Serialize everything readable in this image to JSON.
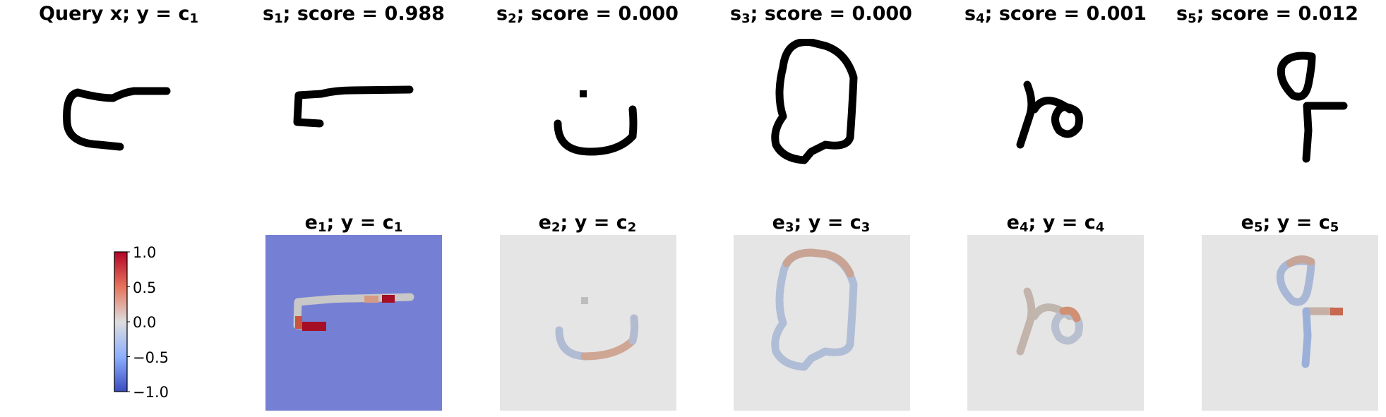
{
  "top_row": [
    {
      "id": "query",
      "name": "Query x",
      "label": "y",
      "class_sub": "1"
    },
    {
      "id": "s1",
      "name": "s",
      "sub": "1",
      "score_label": "score",
      "score": "0.988"
    },
    {
      "id": "s2",
      "name": "s",
      "sub": "2",
      "score_label": "score",
      "score": "0.000"
    },
    {
      "id": "s3",
      "name": "s",
      "sub": "3",
      "score_label": "score",
      "score": "0.000"
    },
    {
      "id": "s4",
      "name": "s",
      "sub": "4",
      "score_label": "score",
      "score": "0.001"
    },
    {
      "id": "s5",
      "name": "s",
      "sub": "5",
      "score_label": "score",
      "score": "0.012"
    }
  ],
  "bottom_row": [
    {
      "id": "e1",
      "name": "e",
      "sub": "1",
      "label": "y",
      "class_sub": "1"
    },
    {
      "id": "e2",
      "name": "e",
      "sub": "2",
      "label": "y",
      "class_sub": "2"
    },
    {
      "id": "e3",
      "name": "e",
      "sub": "3",
      "label": "y",
      "class_sub": "3"
    },
    {
      "id": "e4",
      "name": "e",
      "sub": "4",
      "label": "y",
      "class_sub": "4"
    },
    {
      "id": "e5",
      "name": "e",
      "sub": "5",
      "label": "y",
      "class_sub": "5"
    }
  ],
  "class_symbol": "c",
  "colorbar": {
    "ticks": [
      "1.0",
      "0.5",
      "0.0",
      "−0.5",
      "−1.0"
    ],
    "colormap": "coolwarm",
    "colors": {
      "pos": "#b40426",
      "neg": "#3b4cc0",
      "mid": "#dddddd"
    }
  },
  "colors": {
    "e1_background": "#7580d4",
    "other_background": "#e5e5e5",
    "stroke": "#000000"
  }
}
